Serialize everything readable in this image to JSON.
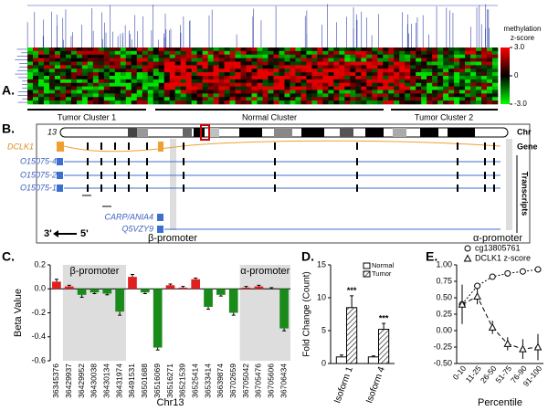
{
  "panel_a": {
    "label": "A.",
    "colorbar_title": [
      "methylation",
      "z-score"
    ],
    "colorbar_ticks": [
      {
        "value": 3,
        "label": "3.0"
      },
      0,
      {
        "value": -3,
        "label": "-3.0"
      }
    ],
    "clusters": [
      "Tumor Cluster 1",
      "Normal Cluster",
      "Tumor Cluster 2"
    ]
  },
  "panel_b": {
    "label": "B.",
    "chromosome": "13",
    "tracks": [
      "Chr",
      "Gene",
      "Transcripts"
    ],
    "gene": "DCLK1",
    "transcripts": [
      "O15075-4",
      "O15075-2",
      "O15075-1",
      "CARP/ANIA4",
      "Q5VZY9"
    ],
    "beta_promoter": "β-promoter",
    "alpha_promoter": "α-promoter",
    "direction": [
      "3'",
      "5'"
    ]
  },
  "chart_data": [
    {
      "type": "bar",
      "label": "C.",
      "ylabel": "Beta Value",
      "xlabel": "Chr13",
      "annotations": [
        "β-promoter",
        "α-promoter"
      ],
      "categories": [
        "36345376",
        "36429937",
        "36429952",
        "36430038",
        "36430134",
        "36431974",
        "36491531",
        "36501688",
        "36516069",
        "36516271",
        "36521539",
        "36525414",
        "36533414",
        "36639874",
        "36702659",
        "36705042",
        "36705476",
        "36705606",
        "36706434"
      ],
      "values": [
        0.06,
        0.02,
        -0.05,
        -0.03,
        -0.04,
        -0.19,
        0.1,
        -0.03,
        -0.49,
        0.03,
        0.01,
        0.08,
        -0.15,
        -0.05,
        -0.2,
        0.01,
        0.02,
        0.0,
        -0.33
      ],
      "errors": [
        0.02,
        0.01,
        0.02,
        0.01,
        0.01,
        0.03,
        0.02,
        0.01,
        0.02,
        0.01,
        0.01,
        0.01,
        0.02,
        0.01,
        0.02,
        0.01,
        0.01,
        0.01,
        0.02
      ],
      "positive_color": "#e02020",
      "negative_color": "#1a8a1a",
      "ylim": [
        -0.6,
        0.2
      ],
      "yticks": [
        {
          "value": -0.6,
          "label": "-0.6"
        },
        {
          "value": -0.4,
          "label": "-0.4"
        },
        {
          "value": -0.2,
          "label": "-0.2"
        },
        {
          "value": 0,
          "label": "0.0"
        },
        {
          "value": 0.2,
          "label": "0.2"
        }
      ]
    },
    {
      "type": "grouped_bar",
      "label": "D.",
      "ylabel": "Fold Change (Count)",
      "categories": [
        "Isoform 1",
        "Isoform 4"
      ],
      "series": [
        {
          "name": "Normal",
          "color": "#ffffff",
          "values": [
            1.0,
            1.0
          ],
          "errors": [
            0.3,
            0.15
          ]
        },
        {
          "name": "Tumor",
          "color": "#888888",
          "hatch": true,
          "values": [
            8.5,
            5.2
          ],
          "errors": [
            1.8,
            0.9
          ],
          "value_labels": [
            "***",
            "***"
          ]
        }
      ],
      "ylim": [
        0,
        15
      ],
      "yticks": [
        0,
        5,
        10,
        15
      ]
    },
    {
      "type": "line",
      "label": "E.",
      "xlabel": "Percentile",
      "categories": [
        "0-10",
        "11-25",
        "26-50",
        "51-75",
        "76-90",
        "91-100"
      ],
      "series": [
        {
          "name": "cg13805761",
          "marker": "circle",
          "dash": "2,2",
          "color": "#000000",
          "values": [
            0.4,
            0.68,
            0.82,
            0.87,
            0.9,
            0.93
          ],
          "errors": [
            0.03,
            0.03,
            0.02,
            0.02,
            0.02,
            0.02
          ]
        },
        {
          "name": "DCLK1 z-score",
          "marker": "triangle",
          "dash": "5,3",
          "color": "#000000",
          "values": [
            0.4,
            0.52,
            0.05,
            -0.2,
            -0.28,
            -0.25
          ],
          "errors": [
            0.3,
            0.12,
            0.1,
            0.1,
            0.15,
            0.2
          ]
        }
      ],
      "ylim": [
        -0.5,
        1.0
      ],
      "yticks": [
        {
          "value": -0.5,
          "label": "-0.50"
        },
        {
          "value": -0.25,
          "label": "-0.25"
        },
        {
          "value": 0,
          "label": "0.00"
        },
        {
          "value": 0.25,
          "label": "0.25"
        },
        {
          "value": 0.5,
          "label": "0.50"
        },
        {
          "value": 0.75,
          "label": "0.75"
        },
        {
          "value": 1.0,
          "label": "1.00"
        }
      ]
    }
  ]
}
